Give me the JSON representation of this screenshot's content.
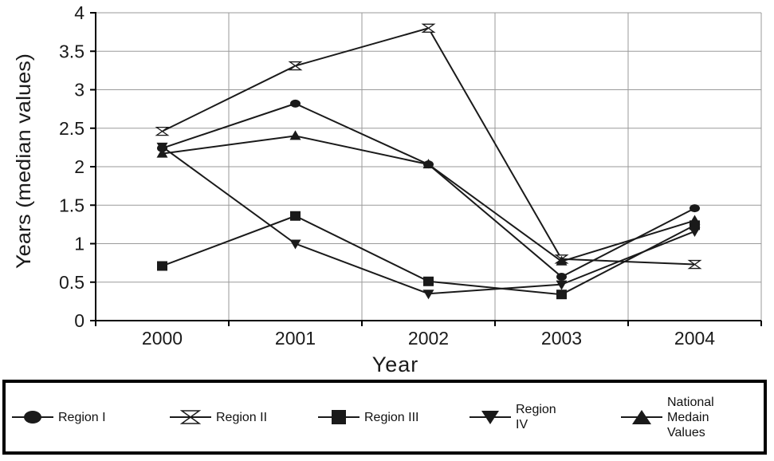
{
  "chart_data": {
    "type": "line",
    "xlabel": "Year",
    "ylabel": "Years (median values)",
    "categories": [
      "2000",
      "2001",
      "2002",
      "2003",
      "2004"
    ],
    "ylim": [
      0,
      4
    ],
    "yticks": [
      "0",
      "0.5",
      "1",
      "1.5",
      "2",
      "2.5",
      "3",
      "3.5",
      "4"
    ],
    "grid": true,
    "legend_position": "bottom",
    "series": [
      {
        "name": "Region I",
        "marker": "circle",
        "values": [
          2.24,
          2.82,
          2.03,
          0.57,
          1.46
        ]
      },
      {
        "name": "Region II",
        "marker": "hourglass-x",
        "values": [
          2.46,
          3.31,
          3.8,
          0.8,
          0.73
        ]
      },
      {
        "name": "Region III",
        "marker": "square",
        "values": [
          0.71,
          1.36,
          0.51,
          0.34,
          1.24
        ]
      },
      {
        "name": "Region IV",
        "marker": "triangle-down",
        "values": [
          2.26,
          1.0,
          0.35,
          0.47,
          1.16
        ]
      },
      {
        "name": "National Medain Values",
        "marker": "triangle-up",
        "values": [
          2.17,
          2.4,
          2.03,
          0.77,
          1.3
        ]
      }
    ]
  },
  "legend": {
    "items": [
      {
        "label": "Region I"
      },
      {
        "label": "Region II"
      },
      {
        "label": "Region III"
      },
      {
        "label": "Region IV"
      },
      {
        "label": "National Medain Values"
      }
    ]
  },
  "colors": {
    "line": "#1a1a1a",
    "grid": "#9a9a9a",
    "axis": "#000000"
  }
}
